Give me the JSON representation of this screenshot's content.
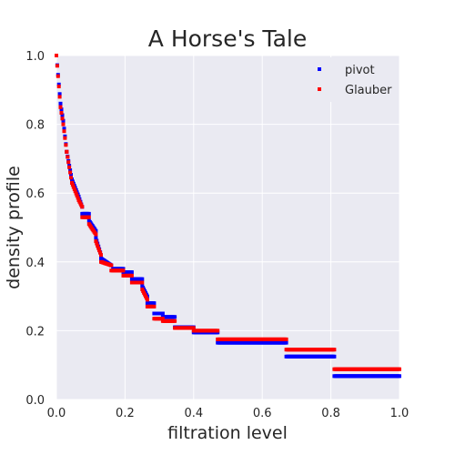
{
  "chart_data": {
    "type": "scatter",
    "title": "A Horse's Tale",
    "xlabel": "filtration level",
    "ylabel": "density profile",
    "xlim": [
      0,
      1
    ],
    "ylim": [
      0,
      1
    ],
    "xticks": [
      "0.0",
      "0.2",
      "0.4",
      "0.6",
      "0.8",
      "1.0"
    ],
    "yticks": [
      "0.0",
      "0.2",
      "0.4",
      "0.6",
      "0.8",
      "1.0"
    ],
    "grid": true,
    "legend_position": "top-right",
    "background_color": "#eaeaf2",
    "grid_color": "#ffffff",
    "series": [
      {
        "name": "pivot",
        "color": "#0000ff",
        "segments": [
          [
            0.0,
            0.012,
            1.0,
            0.86
          ],
          [
            0.012,
            0.02,
            0.86,
            0.81
          ],
          [
            0.02,
            0.03,
            0.81,
            0.72
          ],
          [
            0.03,
            0.045,
            0.72,
            0.64
          ],
          [
            0.045,
            0.065,
            0.64,
            0.59
          ],
          [
            0.065,
            0.075,
            0.59,
            0.56
          ],
          [
            0.075,
            0.095,
            0.54,
            0.54
          ],
          [
            0.095,
            0.115,
            0.52,
            0.49
          ],
          [
            0.115,
            0.13,
            0.47,
            0.42
          ],
          [
            0.13,
            0.16,
            0.41,
            0.39
          ],
          [
            0.165,
            0.195,
            0.38,
            0.38
          ],
          [
            0.195,
            0.22,
            0.37,
            0.37
          ],
          [
            0.22,
            0.25,
            0.35,
            0.35
          ],
          [
            0.25,
            0.265,
            0.33,
            0.3
          ],
          [
            0.265,
            0.285,
            0.28,
            0.28
          ],
          [
            0.285,
            0.31,
            0.25,
            0.25
          ],
          [
            0.31,
            0.345,
            0.24,
            0.24
          ],
          [
            0.345,
            0.4,
            0.21,
            0.21
          ],
          [
            0.4,
            0.47,
            0.195,
            0.195
          ],
          [
            0.47,
            0.67,
            0.165,
            0.165
          ],
          [
            0.67,
            0.81,
            0.125,
            0.125
          ],
          [
            0.81,
            1.0,
            0.068,
            0.068
          ]
        ]
      },
      {
        "name": "Glauber",
        "color": "#ff0000",
        "segments": [
          [
            0.0,
            0.012,
            1.0,
            0.85
          ],
          [
            0.012,
            0.02,
            0.85,
            0.8
          ],
          [
            0.02,
            0.03,
            0.8,
            0.72
          ],
          [
            0.03,
            0.045,
            0.72,
            0.63
          ],
          [
            0.045,
            0.065,
            0.63,
            0.58
          ],
          [
            0.065,
            0.075,
            0.58,
            0.56
          ],
          [
            0.075,
            0.095,
            0.53,
            0.53
          ],
          [
            0.095,
            0.115,
            0.51,
            0.48
          ],
          [
            0.115,
            0.13,
            0.46,
            0.42
          ],
          [
            0.13,
            0.16,
            0.4,
            0.39
          ],
          [
            0.16,
            0.195,
            0.375,
            0.375
          ],
          [
            0.195,
            0.22,
            0.36,
            0.36
          ],
          [
            0.22,
            0.25,
            0.34,
            0.34
          ],
          [
            0.25,
            0.265,
            0.32,
            0.29
          ],
          [
            0.265,
            0.285,
            0.27,
            0.27
          ],
          [
            0.285,
            0.31,
            0.235,
            0.235
          ],
          [
            0.31,
            0.345,
            0.228,
            0.228
          ],
          [
            0.345,
            0.4,
            0.208,
            0.208
          ],
          [
            0.4,
            0.47,
            0.2,
            0.2
          ],
          [
            0.47,
            0.67,
            0.175,
            0.175
          ],
          [
            0.67,
            0.81,
            0.145,
            0.145
          ],
          [
            0.81,
            1.0,
            0.088,
            0.088
          ]
        ]
      }
    ]
  }
}
